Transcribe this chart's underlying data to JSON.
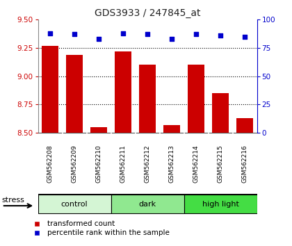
{
  "title": "GDS3933 / 247845_at",
  "samples": [
    "GSM562208",
    "GSM562209",
    "GSM562210",
    "GSM562211",
    "GSM562212",
    "GSM562213",
    "GSM562214",
    "GSM562215",
    "GSM562216"
  ],
  "red_values": [
    9.27,
    9.19,
    8.55,
    9.22,
    9.1,
    8.57,
    9.1,
    8.85,
    8.63
  ],
  "blue_values": [
    88,
    87,
    83,
    88,
    87,
    83,
    87,
    86,
    85
  ],
  "ylim_left": [
    8.5,
    9.5
  ],
  "ylim_right": [
    0,
    100
  ],
  "yticks_left": [
    8.5,
    8.75,
    9.0,
    9.25,
    9.5
  ],
  "yticks_right": [
    0,
    25,
    50,
    75,
    100
  ],
  "groups": [
    {
      "label": "control",
      "indices": [
        0,
        1,
        2
      ],
      "color": "#d4f5d4"
    },
    {
      "label": "dark",
      "indices": [
        3,
        4,
        5
      ],
      "color": "#90e890"
    },
    {
      "label": "high light",
      "indices": [
        6,
        7,
        8
      ],
      "color": "#44dd44"
    }
  ],
  "stress_label": "stress",
  "bar_color": "#cc0000",
  "dot_color": "#0000cc",
  "bar_baseline": 8.5,
  "bg_color": "#ffffff",
  "plot_bg": "#ffffff",
  "title_color": "#222222",
  "left_tick_color": "#cc0000",
  "right_tick_color": "#0000cc",
  "grid_color": "#000000",
  "sample_bg_color": "#cccccc",
  "sample_divider_color": "#ffffff"
}
